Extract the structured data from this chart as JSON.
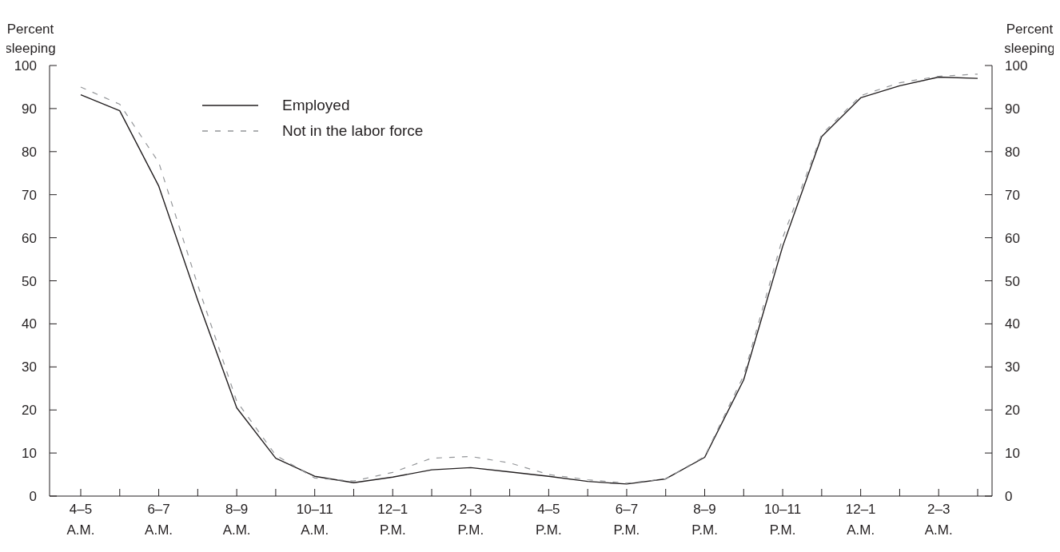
{
  "chart_data": {
    "type": "line",
    "ylabel": "Percent\nsleeping",
    "y2label": "Percent\nsleeping",
    "categories": [
      "4–5\nA.M.",
      null,
      "6–7\nA.M.",
      null,
      "8–9\nA.M.",
      null,
      "10–11\nA.M.",
      null,
      "12–1\nP.M.",
      null,
      "2–3\nP.M.",
      null,
      "4–5\nP.M.",
      null,
      "6–7\nP.M.",
      null,
      "8–9\nP.M.",
      null,
      "10–11\nP.M.",
      null,
      "12–1\nA.M.",
      null,
      "2–3\nA.M.",
      null
    ],
    "series": [
      {
        "name": "Employed",
        "color": "#231f20",
        "line_style": "solid",
        "values": [
          93.2,
          89.5,
          72,
          45.5,
          20.5,
          8.8,
          4.6,
          3.1,
          4.4,
          6.1,
          6.6,
          5.6,
          4.6,
          3.4,
          2.8,
          4.0,
          9,
          27,
          58,
          83.5,
          92.5,
          95.3,
          97.3,
          97
        ]
      },
      {
        "name": "Not in the labor force",
        "color": "#939598",
        "line_style": "dashed",
        "values": [
          95,
          91,
          77.5,
          49,
          22,
          9.5,
          4.2,
          3.5,
          5.5,
          8.8,
          9.2,
          7.7,
          5,
          3.8,
          3,
          4,
          9.2,
          28,
          60,
          84,
          93,
          96,
          97.5,
          98
        ]
      }
    ],
    "ylim": [
      0,
      100
    ],
    "yticks": [
      0,
      10,
      20,
      30,
      40,
      50,
      60,
      70,
      80,
      90,
      100
    ],
    "y2lim": [
      0,
      100
    ],
    "y2ticks": [
      0,
      10,
      20,
      30,
      40,
      50,
      60,
      70,
      80,
      90,
      100
    ],
    "legend": "top left"
  }
}
